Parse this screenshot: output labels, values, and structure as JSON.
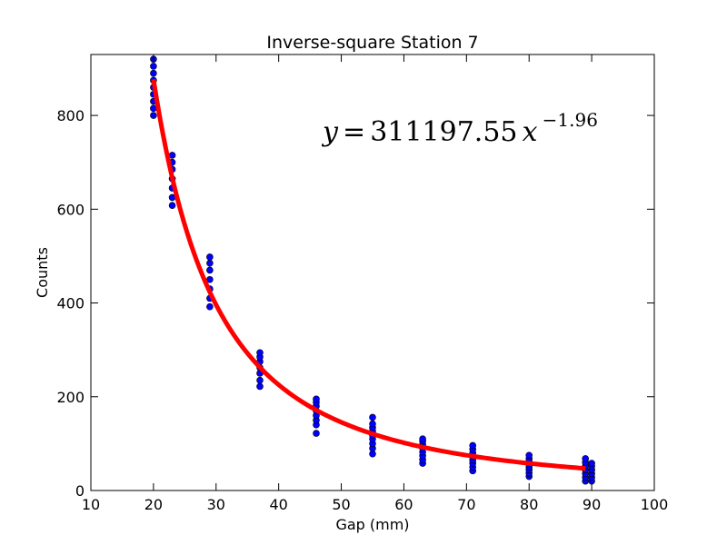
{
  "chart_data": {
    "type": "scatter",
    "title": "Inverse-square Station 7",
    "xlabel": "Gap (mm)",
    "ylabel": "Counts",
    "xlim": [
      10,
      100
    ],
    "ylim": [
      0,
      930
    ],
    "xticks": [
      10,
      20,
      30,
      40,
      50,
      60,
      70,
      80,
      90,
      100
    ],
    "yticks": [
      0,
      200,
      400,
      600,
      800
    ],
    "grid": false,
    "colors": {
      "points": "#0000ff",
      "point_edge": "#000000",
      "fit": "#ff0000"
    },
    "annotation": {
      "lhs": "y",
      "equals": "=",
      "coefficient": "311197.55",
      "base": "x",
      "exponent": "−1.96"
    },
    "fit": {
      "model": "power",
      "a": 311197.55,
      "b": -1.96,
      "x_range": [
        20,
        89
      ]
    },
    "series": [
      {
        "points": [
          [
            20,
            800
          ],
          [
            20,
            815
          ],
          [
            20,
            830
          ],
          [
            20,
            845
          ],
          [
            20,
            860
          ],
          [
            20,
            875
          ],
          [
            20,
            890
          ],
          [
            20,
            905
          ],
          [
            20,
            920
          ],
          [
            23,
            608
          ],
          [
            23,
            625
          ],
          [
            23,
            645
          ],
          [
            23,
            665
          ],
          [
            23,
            685
          ],
          [
            23,
            700
          ],
          [
            23,
            715
          ],
          [
            29,
            392
          ],
          [
            29,
            410
          ],
          [
            29,
            430
          ],
          [
            29,
            450
          ],
          [
            29,
            470
          ],
          [
            29,
            485
          ],
          [
            29,
            498
          ],
          [
            37,
            222
          ],
          [
            37,
            235
          ],
          [
            37,
            250
          ],
          [
            37,
            262
          ],
          [
            37,
            275
          ],
          [
            37,
            285
          ],
          [
            37,
            294
          ],
          [
            46,
            122
          ],
          [
            46,
            140
          ],
          [
            46,
            150
          ],
          [
            46,
            160
          ],
          [
            46,
            170
          ],
          [
            46,
            180
          ],
          [
            46,
            188
          ],
          [
            46,
            195
          ],
          [
            55,
            78
          ],
          [
            55,
            90
          ],
          [
            55,
            100
          ],
          [
            55,
            110
          ],
          [
            55,
            118
          ],
          [
            55,
            126
          ],
          [
            55,
            134
          ],
          [
            55,
            142
          ],
          [
            55,
            156
          ],
          [
            63,
            58
          ],
          [
            63,
            66
          ],
          [
            63,
            74
          ],
          [
            63,
            82
          ],
          [
            63,
            90
          ],
          [
            63,
            98
          ],
          [
            63,
            105
          ],
          [
            63,
            110
          ],
          [
            71,
            42
          ],
          [
            71,
            50
          ],
          [
            71,
            58
          ],
          [
            71,
            65
          ],
          [
            71,
            72
          ],
          [
            71,
            80
          ],
          [
            71,
            88
          ],
          [
            71,
            96
          ],
          [
            80,
            30
          ],
          [
            80,
            37
          ],
          [
            80,
            44
          ],
          [
            80,
            50
          ],
          [
            80,
            56
          ],
          [
            80,
            62
          ],
          [
            80,
            68
          ],
          [
            80,
            75
          ],
          [
            89,
            20
          ],
          [
            89,
            28
          ],
          [
            89,
            36
          ],
          [
            89,
            44
          ],
          [
            89,
            52
          ],
          [
            89,
            60
          ],
          [
            89,
            68
          ],
          [
            90,
            20
          ],
          [
            90,
            28
          ],
          [
            90,
            36
          ],
          [
            90,
            44
          ],
          [
            90,
            52
          ],
          [
            90,
            58
          ]
        ]
      }
    ]
  }
}
